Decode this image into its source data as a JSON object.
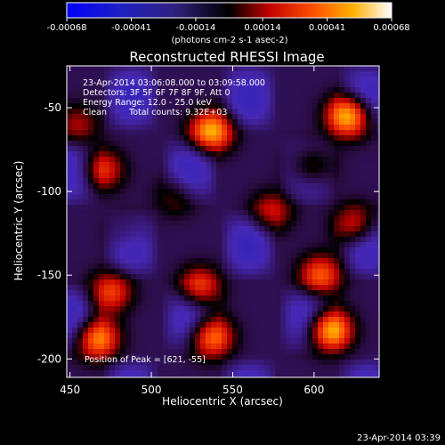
{
  "window": {
    "title": "Reconstructed RHESSI Image",
    "timestamp": "23-Apr-2014 03:39"
  },
  "chart_data": {
    "type": "heatmap",
    "title": "Reconstructed RHESSI Image",
    "xlabel": "Heliocentric X (arcsec)",
    "ylabel": "Heliocentric Y (arcsec)",
    "xlim": [
      448,
      640
    ],
    "ylim": [
      -211,
      -25
    ],
    "x_ticks": [
      450,
      500,
      550,
      600
    ],
    "y_ticks": [
      -50,
      -100,
      -150,
      -200
    ],
    "colorbar": {
      "ticks": [
        "-0.00068",
        "-0.00041",
        "-0.00014",
        "0.00014",
        "0.00041",
        "0.00068"
      ],
      "label": "(photons cm-2 s-1 asec-2)",
      "range": [
        -0.00068,
        0.00068
      ]
    },
    "annotations": {
      "time_range": "23-Apr-2014 03:06:08.000 to 03:09:58.000",
      "detectors": "Detectors: 3F 5F 6F 7F 8F 9F, Att 0",
      "energy": "Energy Range: 12.0 - 25.0 keV",
      "method": "Clean",
      "total_counts": "Total counts: 9.32E+03",
      "peak": "Position of Peak = [621, -55]"
    },
    "peak": [
      621,
      -55
    ],
    "sources": [
      {
        "x": 621,
        "y": -55,
        "value": 0.00068
      },
      {
        "x": 537,
        "y": -64,
        "value": 0.00062
      },
      {
        "x": 610,
        "y": -183,
        "value": 0.00066
      },
      {
        "x": 467,
        "y": -188,
        "value": 0.00055
      },
      {
        "x": 537,
        "y": -187,
        "value": 0.00052
      },
      {
        "x": 530,
        "y": -157,
        "value": 0.0004
      },
      {
        "x": 604,
        "y": -150,
        "value": 0.00045
      },
      {
        "x": 625,
        "y": -120,
        "value": 0.00036
      },
      {
        "x": 470,
        "y": -87,
        "value": 0.00036
      },
      {
        "x": 574,
        "y": -112,
        "value": 0.0003
      },
      {
        "x": 598,
        "y": -85,
        "value": 0.00032
      },
      {
        "x": 475,
        "y": -160,
        "value": 0.0004
      },
      {
        "x": 515,
        "y": -103,
        "value": 0.00018
      },
      {
        "x": 455,
        "y": -60,
        "value": 0.00024
      },
      {
        "x": 485,
        "y": -125,
        "value": 0.00012
      }
    ]
  }
}
